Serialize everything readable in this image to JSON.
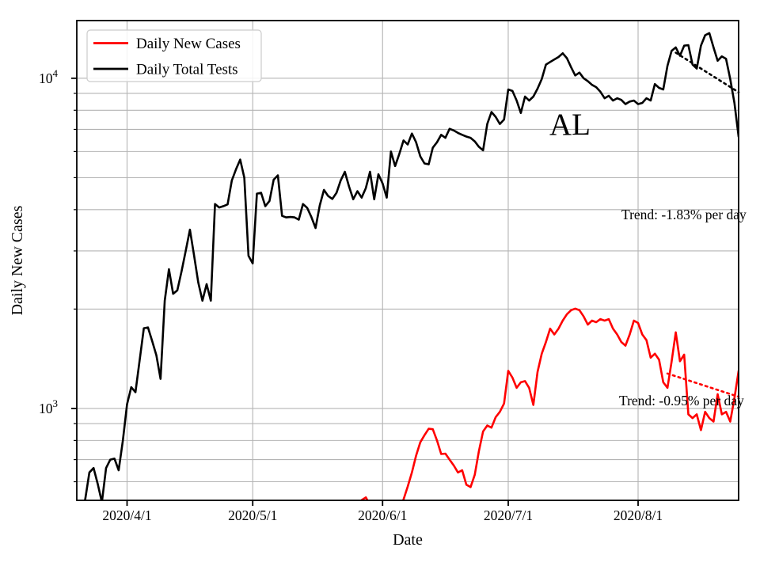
{
  "chart_data": {
    "type": "line",
    "title": "",
    "xlabel": "Date",
    "ylabel": "Daily New Cases",
    "y_scale": "log",
    "x_range": [
      "2020-03-20",
      "2020-08-25"
    ],
    "ylim": [
      527,
      14950
    ],
    "grid": true,
    "x_ticks": [
      {
        "date": "2020-04-01",
        "label": "2020/4/1"
      },
      {
        "date": "2020-05-01",
        "label": "2020/5/1"
      },
      {
        "date": "2020-06-01",
        "label": "2020/6/1"
      },
      {
        "date": "2020-07-01",
        "label": "2020/7/1"
      },
      {
        "date": "2020-08-01",
        "label": "2020/8/1"
      }
    ],
    "y_major_ticks": [
      {
        "value": 1000,
        "base": "10",
        "exp": "3"
      },
      {
        "value": 10000,
        "base": "10",
        "exp": "4"
      }
    ],
    "y_minor_ticks": [
      600,
      700,
      800,
      900,
      2000,
      3000,
      4000,
      5000,
      6000,
      7000,
      8000,
      9000
    ],
    "legend": {
      "position": "upper-left",
      "items": [
        {
          "label": "Daily New Cases",
          "color": "#ff0000"
        },
        {
          "label": "Daily Total Tests",
          "color": "#000000"
        }
      ]
    },
    "annotations": {
      "state_label": "AL",
      "trend_tests_label": "Trend: -1.83% per day",
      "trend_cases_label": "Trend: -0.95% per day"
    },
    "trend_lines": [
      {
        "series": "Daily Total Tests",
        "color": "#000000",
        "rate_per_day": "-1.83%",
        "start": [
          "2020-08-10",
          11950
        ],
        "end": [
          "2020-08-25",
          9070
        ]
      },
      {
        "series": "Daily New Cases",
        "color": "#ff0000",
        "rate_per_day": "-0.95%",
        "start": [
          "2020-08-08",
          1276
        ],
        "end": [
          "2020-08-25",
          1085
        ]
      }
    ],
    "series": [
      {
        "name": "Daily Total Tests",
        "color": "#000000",
        "points": [
          [
            "2020-03-21",
            500
          ],
          [
            "2020-03-22",
            530
          ],
          [
            "2020-03-23",
            640
          ],
          [
            "2020-03-24",
            660
          ],
          [
            "2020-03-25",
            590
          ],
          [
            "2020-03-26",
            520
          ],
          [
            "2020-03-27",
            660
          ],
          [
            "2020-03-28",
            700
          ],
          [
            "2020-03-29",
            705
          ],
          [
            "2020-03-30",
            650
          ],
          [
            "2020-03-31",
            800
          ],
          [
            "2020-04-01",
            1030
          ],
          [
            "2020-04-02",
            1160
          ],
          [
            "2020-04-03",
            1120
          ],
          [
            "2020-04-04",
            1400
          ],
          [
            "2020-04-05",
            1750
          ],
          [
            "2020-04-06",
            1760
          ],
          [
            "2020-04-07",
            1600
          ],
          [
            "2020-04-08",
            1450
          ],
          [
            "2020-04-09",
            1230
          ],
          [
            "2020-04-10",
            2120
          ],
          [
            "2020-04-11",
            2640
          ],
          [
            "2020-04-12",
            2225
          ],
          [
            "2020-04-13",
            2280
          ],
          [
            "2020-04-14",
            2600
          ],
          [
            "2020-04-15",
            3000
          ],
          [
            "2020-04-16",
            3480
          ],
          [
            "2020-04-17",
            2900
          ],
          [
            "2020-04-18",
            2410
          ],
          [
            "2020-04-19",
            2120
          ],
          [
            "2020-04-20",
            2380
          ],
          [
            "2020-04-21",
            2120
          ],
          [
            "2020-04-22",
            4160
          ],
          [
            "2020-04-23",
            4060
          ],
          [
            "2020-04-24",
            4100
          ],
          [
            "2020-04-25",
            4150
          ],
          [
            "2020-04-26",
            4900
          ],
          [
            "2020-04-27",
            5300
          ],
          [
            "2020-04-28",
            5670
          ],
          [
            "2020-04-29",
            5000
          ],
          [
            "2020-04-30",
            2900
          ],
          [
            "2020-05-01",
            2750
          ],
          [
            "2020-05-02",
            4470
          ],
          [
            "2020-05-03",
            4500
          ],
          [
            "2020-05-04",
            4100
          ],
          [
            "2020-05-05",
            4250
          ],
          [
            "2020-05-06",
            4930
          ],
          [
            "2020-05-07",
            5080
          ],
          [
            "2020-05-08",
            3830
          ],
          [
            "2020-05-09",
            3790
          ],
          [
            "2020-05-10",
            3800
          ],
          [
            "2020-05-11",
            3790
          ],
          [
            "2020-05-12",
            3730
          ],
          [
            "2020-05-13",
            4160
          ],
          [
            "2020-05-14",
            4050
          ],
          [
            "2020-05-15",
            3800
          ],
          [
            "2020-05-16",
            3520
          ],
          [
            "2020-05-17",
            4120
          ],
          [
            "2020-05-18",
            4590
          ],
          [
            "2020-05-19",
            4400
          ],
          [
            "2020-05-20",
            4310
          ],
          [
            "2020-05-21",
            4500
          ],
          [
            "2020-05-22",
            4900
          ],
          [
            "2020-05-23",
            5210
          ],
          [
            "2020-05-24",
            4700
          ],
          [
            "2020-05-25",
            4300
          ],
          [
            "2020-05-26",
            4550
          ],
          [
            "2020-05-27",
            4350
          ],
          [
            "2020-05-28",
            4650
          ],
          [
            "2020-05-29",
            5210
          ],
          [
            "2020-05-30",
            4300
          ],
          [
            "2020-05-31",
            5120
          ],
          [
            "2020-06-01",
            4800
          ],
          [
            "2020-06-02",
            4350
          ],
          [
            "2020-06-03",
            6000
          ],
          [
            "2020-06-04",
            5420
          ],
          [
            "2020-06-05",
            5900
          ],
          [
            "2020-06-06",
            6480
          ],
          [
            "2020-06-07",
            6300
          ],
          [
            "2020-06-08",
            6800
          ],
          [
            "2020-06-09",
            6400
          ],
          [
            "2020-06-10",
            5800
          ],
          [
            "2020-06-11",
            5520
          ],
          [
            "2020-06-12",
            5490
          ],
          [
            "2020-06-13",
            6160
          ],
          [
            "2020-06-14",
            6400
          ],
          [
            "2020-06-15",
            6740
          ],
          [
            "2020-06-16",
            6600
          ],
          [
            "2020-06-17",
            7030
          ],
          [
            "2020-06-18",
            6950
          ],
          [
            "2020-06-19",
            6830
          ],
          [
            "2020-06-20",
            6740
          ],
          [
            "2020-06-21",
            6660
          ],
          [
            "2020-06-22",
            6600
          ],
          [
            "2020-06-23",
            6440
          ],
          [
            "2020-06-24",
            6200
          ],
          [
            "2020-06-25",
            6050
          ],
          [
            "2020-06-26",
            7270
          ],
          [
            "2020-06-27",
            7900
          ],
          [
            "2020-06-28",
            7640
          ],
          [
            "2020-06-29",
            7270
          ],
          [
            "2020-06-30",
            7500
          ],
          [
            "2020-07-01",
            9250
          ],
          [
            "2020-07-02",
            9150
          ],
          [
            "2020-07-03",
            8560
          ],
          [
            "2020-07-04",
            7850
          ],
          [
            "2020-07-05",
            8800
          ],
          [
            "2020-07-06",
            8560
          ],
          [
            "2020-07-07",
            8800
          ],
          [
            "2020-07-08",
            9300
          ],
          [
            "2020-07-09",
            9940
          ],
          [
            "2020-07-10",
            11000
          ],
          [
            "2020-07-11",
            11200
          ],
          [
            "2020-07-12",
            11400
          ],
          [
            "2020-07-13",
            11600
          ],
          [
            "2020-07-14",
            11900
          ],
          [
            "2020-07-15",
            11500
          ],
          [
            "2020-07-16",
            10800
          ],
          [
            "2020-07-17",
            10200
          ],
          [
            "2020-07-18",
            10400
          ],
          [
            "2020-07-19",
            10000
          ],
          [
            "2020-07-20",
            9800
          ],
          [
            "2020-07-21",
            9550
          ],
          [
            "2020-07-22",
            9400
          ],
          [
            "2020-07-23",
            9100
          ],
          [
            "2020-07-24",
            8700
          ],
          [
            "2020-07-25",
            8850
          ],
          [
            "2020-07-26",
            8560
          ],
          [
            "2020-07-27",
            8700
          ],
          [
            "2020-07-28",
            8600
          ],
          [
            "2020-07-29",
            8350
          ],
          [
            "2020-07-30",
            8500
          ],
          [
            "2020-07-31",
            8560
          ],
          [
            "2020-08-01",
            8350
          ],
          [
            "2020-08-02",
            8420
          ],
          [
            "2020-08-03",
            8700
          ],
          [
            "2020-08-04",
            8560
          ],
          [
            "2020-08-05",
            9600
          ],
          [
            "2020-08-06",
            9350
          ],
          [
            "2020-08-07",
            9250
          ],
          [
            "2020-08-08",
            10900
          ],
          [
            "2020-08-09",
            12100
          ],
          [
            "2020-08-10",
            12400
          ],
          [
            "2020-08-11",
            11700
          ],
          [
            "2020-08-12",
            12550
          ],
          [
            "2020-08-13",
            12600
          ],
          [
            "2020-08-14",
            11000
          ],
          [
            "2020-08-15",
            10700
          ],
          [
            "2020-08-16",
            12550
          ],
          [
            "2020-08-17",
            13500
          ],
          [
            "2020-08-18",
            13700
          ],
          [
            "2020-08-19",
            12400
          ],
          [
            "2020-08-20",
            11300
          ],
          [
            "2020-08-21",
            11650
          ],
          [
            "2020-08-22",
            11450
          ],
          [
            "2020-08-23",
            9940
          ],
          [
            "2020-08-24",
            8420
          ],
          [
            "2020-08-25",
            6650
          ]
        ]
      },
      {
        "name": "Daily New Cases",
        "color": "#ff0000",
        "points": [
          [
            "2020-05-26",
            505
          ],
          [
            "2020-05-27",
            528
          ],
          [
            "2020-05-28",
            538
          ],
          [
            "2020-05-29",
            510
          ],
          [
            "2020-06-05",
            505
          ],
          [
            "2020-06-06",
            530
          ],
          [
            "2020-06-07",
            580
          ],
          [
            "2020-06-08",
            640
          ],
          [
            "2020-06-09",
            720
          ],
          [
            "2020-06-10",
            790
          ],
          [
            "2020-06-11",
            830
          ],
          [
            "2020-06-12",
            868
          ],
          [
            "2020-06-13",
            865
          ],
          [
            "2020-06-14",
            800
          ],
          [
            "2020-06-15",
            728
          ],
          [
            "2020-06-16",
            730
          ],
          [
            "2020-06-17",
            700
          ],
          [
            "2020-06-18",
            672
          ],
          [
            "2020-06-19",
            640
          ],
          [
            "2020-06-20",
            650
          ],
          [
            "2020-06-21",
            588
          ],
          [
            "2020-06-22",
            578
          ],
          [
            "2020-06-23",
            630
          ],
          [
            "2020-06-24",
            742
          ],
          [
            "2020-06-25",
            852
          ],
          [
            "2020-06-26",
            888
          ],
          [
            "2020-06-27",
            875
          ],
          [
            "2020-06-28",
            941
          ],
          [
            "2020-06-29",
            977
          ],
          [
            "2020-06-30",
            1035
          ],
          [
            "2020-07-01",
            1300
          ],
          [
            "2020-07-02",
            1240
          ],
          [
            "2020-07-03",
            1155
          ],
          [
            "2020-07-04",
            1200
          ],
          [
            "2020-07-05",
            1210
          ],
          [
            "2020-07-06",
            1155
          ],
          [
            "2020-07-07",
            1025
          ],
          [
            "2020-07-08",
            1290
          ],
          [
            "2020-07-09",
            1465
          ],
          [
            "2020-07-10",
            1590
          ],
          [
            "2020-07-11",
            1745
          ],
          [
            "2020-07-12",
            1675
          ],
          [
            "2020-07-13",
            1745
          ],
          [
            "2020-07-14",
            1845
          ],
          [
            "2020-07-15",
            1930
          ],
          [
            "2020-07-16",
            1985
          ],
          [
            "2020-07-17",
            2005
          ],
          [
            "2020-07-18",
            1985
          ],
          [
            "2020-07-19",
            1900
          ],
          [
            "2020-07-20",
            1795
          ],
          [
            "2020-07-21",
            1845
          ],
          [
            "2020-07-22",
            1825
          ],
          [
            "2020-07-23",
            1865
          ],
          [
            "2020-07-24",
            1845
          ],
          [
            "2020-07-25",
            1865
          ],
          [
            "2020-07-26",
            1745
          ],
          [
            "2020-07-27",
            1675
          ],
          [
            "2020-07-28",
            1590
          ],
          [
            "2020-07-29",
            1550
          ],
          [
            "2020-07-30",
            1675
          ],
          [
            "2020-07-31",
            1845
          ],
          [
            "2020-08-01",
            1815
          ],
          [
            "2020-08-02",
            1675
          ],
          [
            "2020-08-03",
            1610
          ],
          [
            "2020-08-04",
            1425
          ],
          [
            "2020-08-05",
            1465
          ],
          [
            "2020-08-06",
            1405
          ],
          [
            "2020-08-07",
            1200
          ],
          [
            "2020-08-08",
            1155
          ],
          [
            "2020-08-09",
            1385
          ],
          [
            "2020-08-10",
            1700
          ],
          [
            "2020-08-11",
            1390
          ],
          [
            "2020-08-12",
            1455
          ],
          [
            "2020-08-13",
            960
          ],
          [
            "2020-08-14",
            935
          ],
          [
            "2020-08-15",
            960
          ],
          [
            "2020-08-16",
            860
          ],
          [
            "2020-08-17",
            977
          ],
          [
            "2020-08-18",
            935
          ],
          [
            "2020-08-19",
            913
          ],
          [
            "2020-08-20",
            1105
          ],
          [
            "2020-08-21",
            960
          ],
          [
            "2020-08-22",
            977
          ],
          [
            "2020-08-23",
            913
          ],
          [
            "2020-08-24",
            1075
          ],
          [
            "2020-08-25",
            1300
          ]
        ]
      }
    ]
  },
  "colors": {
    "background": "#ffffff",
    "grid": "#b4b4b4",
    "spine": "#000000",
    "legend_border": "#cccccc",
    "cases": "#ff0000",
    "tests": "#000000"
  }
}
